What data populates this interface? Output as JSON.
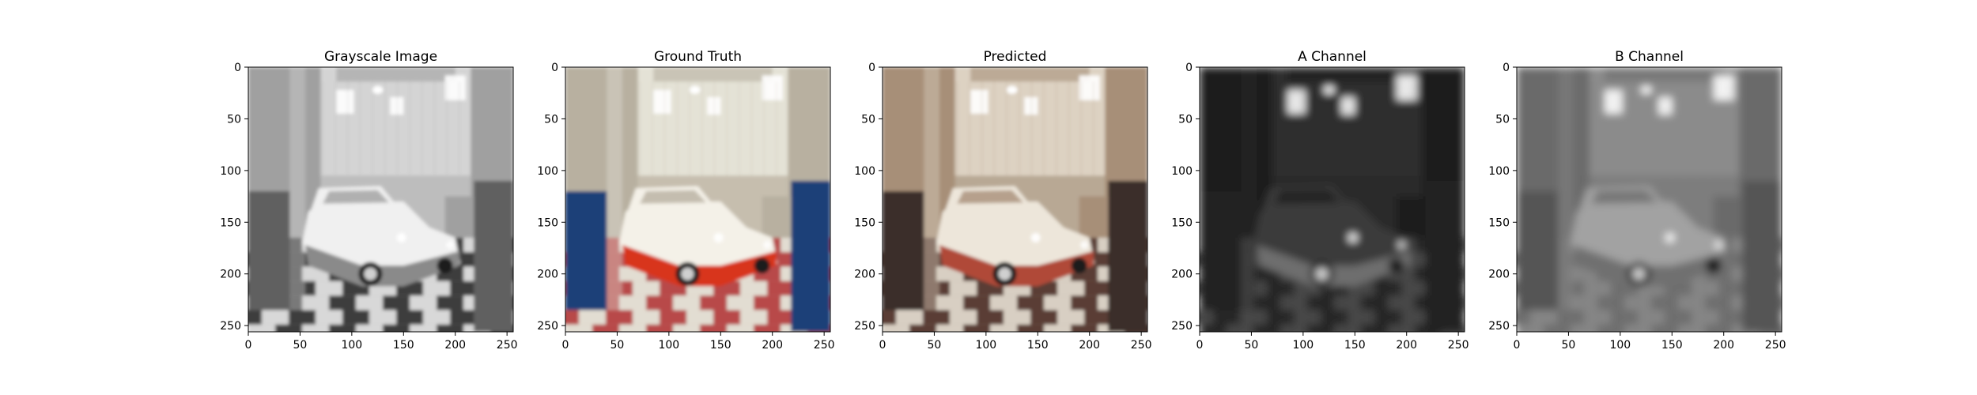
{
  "figure": {
    "panels": [
      {
        "title": "Grayscale Image",
        "mode": "gray",
        "x_ticks": [
          "0",
          "50",
          "100",
          "150",
          "200",
          "250"
        ],
        "y_ticks": [
          "0",
          "50",
          "100",
          "150",
          "200",
          "250"
        ]
      },
      {
        "title": "Ground Truth",
        "mode": "color",
        "x_ticks": [
          "0",
          "50",
          "100",
          "150",
          "200",
          "250"
        ],
        "y_ticks": [
          "0",
          "50",
          "100",
          "150",
          "200",
          "250"
        ]
      },
      {
        "title": "Predicted",
        "mode": "predicted",
        "x_ticks": [
          "0",
          "50",
          "100",
          "150",
          "200",
          "250"
        ],
        "y_ticks": [
          "0",
          "50",
          "100",
          "150",
          "200",
          "250"
        ]
      },
      {
        "title": "A Channel",
        "mode": "a-channel",
        "x_ticks": [
          "0",
          "50",
          "100",
          "150",
          "200",
          "250"
        ],
        "y_ticks": [
          "0",
          "50",
          "100",
          "150",
          "200",
          "250"
        ]
      },
      {
        "title": "B Channel",
        "mode": "b-channel",
        "x_ticks": [
          "0",
          "50",
          "100",
          "150",
          "200",
          "250"
        ],
        "y_ticks": [
          "0",
          "50",
          "100",
          "150",
          "200",
          "250"
        ]
      }
    ],
    "image_extent": [
      0,
      256
    ],
    "tick_values": [
      0,
      50,
      100,
      150,
      200,
      250
    ],
    "palettes": {
      "gray": {
        "wall": "#d4d4d4",
        "wall_dark": "#a0a0a0",
        "floor_a": "#3c3c3c",
        "floor_b": "#d8d8d8",
        "curtain": "#606060",
        "car_top": "#f0f0f0",
        "car_bottom": "#8a8a8a",
        "bg": "#bdbdbd"
      },
      "color": {
        "wall": "#e4e2d6",
        "wall_dark": "#b8b0a0",
        "floor_a": "#b84848",
        "floor_b": "#e2ddd2",
        "curtain": "#1d3f78",
        "car_top": "#f4f1e8",
        "car_bottom": "#d8341c",
        "bg": "#c6beae"
      },
      "predicted": {
        "wall": "#ddd2c2",
        "wall_dark": "#a78f78",
        "floor_a": "#5a3e34",
        "floor_b": "#d8cfc3",
        "curtain": "#3a2e2a",
        "car_top": "#ede6da",
        "car_bottom": "#b04838",
        "bg": "#b8a894"
      },
      "a-channel": {
        "wall": "#2e2e2e",
        "wall_dark": "#1c1c1c",
        "floor_a": "#474747",
        "floor_b": "#262626",
        "curtain": "#202020",
        "car_top": "#3a3a3a",
        "car_bottom": "#6e6e6e",
        "bg": "#2a2a2a"
      },
      "b-channel": {
        "wall": "#8c8c8c",
        "wall_dark": "#6a6a6a",
        "floor_a": "#6e6e6e",
        "floor_b": "#858585",
        "curtain": "#555555",
        "car_top": "#a2a2a2",
        "car_bottom": "#707070",
        "bg": "#7d7d7d"
      }
    }
  }
}
